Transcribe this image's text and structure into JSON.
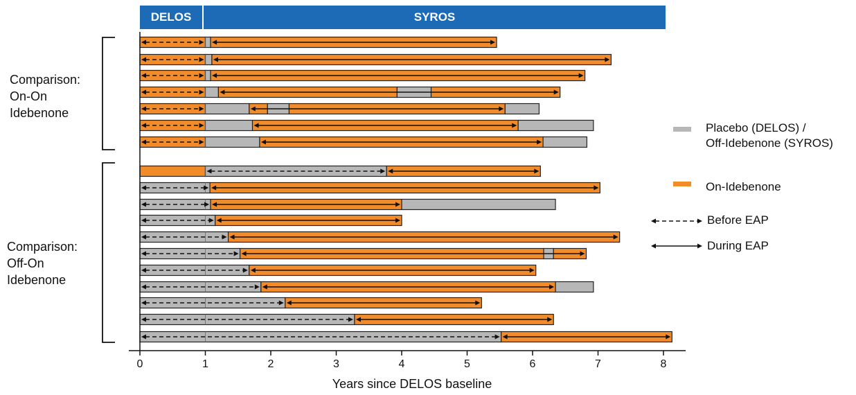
{
  "header": {
    "delos": "DELOS",
    "syros": "SYROS"
  },
  "groups": [
    {
      "lines": [
        "Comparison:",
        "On-On",
        "Idebenone"
      ]
    },
    {
      "lines": [
        "Comparison:",
        "Off-On",
        "Idebenone"
      ]
    }
  ],
  "legend": {
    "placebo": [
      "Placebo (DELOS) /",
      "Off-Idebenone (SYROS)"
    ],
    "on": "On-Idebenone",
    "before": "Before EAP",
    "during": "During EAP"
  },
  "colors": {
    "on": "#f28b2a",
    "off": "#b7b7b7",
    "header": "#1d6ab7",
    "stroke": "#222222"
  },
  "chart_data": {
    "type": "bar",
    "orientation": "horizontal-timeline",
    "xlabel": "Years since DELOS baseline",
    "xlim": [
      0,
      8.4
    ],
    "xticks": [
      0,
      1,
      2,
      3,
      4,
      5,
      6,
      7,
      8
    ],
    "rows": [
      {
        "segments": [
          [
            0,
            1,
            "on"
          ],
          [
            1,
            1.08,
            "off"
          ],
          [
            1.08,
            5.45,
            "on"
          ]
        ],
        "before": [
          0,
          1.0
        ],
        "during": [
          1.08,
          5.45
        ]
      },
      {
        "segments": [
          [
            0,
            1,
            "on"
          ],
          [
            1,
            1.1,
            "off"
          ],
          [
            1.1,
            7.2,
            "on"
          ]
        ],
        "before": [
          0,
          1.0
        ],
        "during": [
          1.1,
          7.2
        ]
      },
      {
        "segments": [
          [
            0,
            1,
            "on"
          ],
          [
            1,
            1.08,
            "off"
          ],
          [
            1.08,
            6.8,
            "on"
          ]
        ],
        "before": [
          0,
          1.0
        ],
        "during": [
          1.08,
          6.8
        ]
      },
      {
        "segments": [
          [
            0,
            1,
            "on"
          ],
          [
            1,
            1.2,
            "off"
          ],
          [
            1.2,
            3.93,
            "on"
          ],
          [
            3.93,
            4.45,
            "off"
          ],
          [
            4.45,
            6.42,
            "on"
          ]
        ],
        "before": [
          0,
          1.0
        ],
        "during": [
          1.2,
          6.42
        ]
      },
      {
        "segments": [
          [
            0,
            1,
            "on"
          ],
          [
            1,
            1.67,
            "off"
          ],
          [
            1.67,
            1.95,
            "on"
          ],
          [
            1.95,
            2.28,
            "off"
          ],
          [
            2.28,
            5.58,
            "on"
          ],
          [
            5.58,
            6.1,
            "off"
          ]
        ],
        "before": [
          0,
          1.0
        ],
        "during": [
          1.67,
          5.58
        ]
      },
      {
        "segments": [
          [
            0,
            1,
            "on"
          ],
          [
            1,
            1.72,
            "off"
          ],
          [
            1.72,
            5.78,
            "on"
          ],
          [
            5.78,
            6.93,
            "off"
          ]
        ],
        "before": [
          0,
          1.0
        ],
        "during": [
          1.72,
          5.78
        ]
      },
      {
        "segments": [
          [
            0,
            1,
            "on"
          ],
          [
            1,
            1.83,
            "off"
          ],
          [
            1.83,
            6.16,
            "on"
          ],
          [
            6.16,
            6.83,
            "off"
          ]
        ],
        "before": [
          0,
          1.0
        ],
        "during": [
          1.83,
          6.16
        ]
      },
      {
        "segments": [
          [
            0,
            1,
            "on"
          ],
          [
            1,
            3.77,
            "off"
          ],
          [
            3.77,
            6.12,
            "on"
          ]
        ],
        "before": [
          1,
          3.77
        ],
        "during": [
          3.77,
          6.12
        ]
      },
      {
        "segments": [
          [
            0,
            1.07,
            "off"
          ],
          [
            1.07,
            7.03,
            "on"
          ]
        ],
        "before": [
          0,
          1.07
        ],
        "during": [
          1.07,
          7.03
        ]
      },
      {
        "segments": [
          [
            0,
            1.08,
            "off"
          ],
          [
            1.08,
            4.0,
            "on"
          ],
          [
            4.0,
            6.35,
            "off"
          ]
        ],
        "before": [
          0,
          1.08
        ],
        "during": [
          1.08,
          4.0
        ]
      },
      {
        "segments": [
          [
            0,
            1.15,
            "off"
          ],
          [
            1.15,
            4.0,
            "on"
          ]
        ],
        "before": [
          0,
          1.15
        ],
        "during": [
          1.15,
          4.0
        ]
      },
      {
        "segments": [
          [
            0,
            1.35,
            "off"
          ],
          [
            1.35,
            7.33,
            "on"
          ]
        ],
        "before": [
          0,
          1.35
        ],
        "during": [
          1.35,
          7.33
        ]
      },
      {
        "segments": [
          [
            0,
            1.53,
            "off"
          ],
          [
            1.53,
            6.17,
            "on"
          ],
          [
            6.17,
            6.32,
            "off"
          ],
          [
            6.32,
            6.82,
            "on"
          ]
        ],
        "before": [
          0,
          1.53
        ],
        "during": [
          1.53,
          6.82
        ]
      },
      {
        "segments": [
          [
            0,
            1.67,
            "off"
          ],
          [
            1.67,
            6.05,
            "on"
          ]
        ],
        "before": [
          0,
          1.67
        ],
        "during": [
          1.67,
          6.05
        ]
      },
      {
        "segments": [
          [
            0,
            1.85,
            "off"
          ],
          [
            1.85,
            6.35,
            "on"
          ],
          [
            6.35,
            6.93,
            "off"
          ]
        ],
        "before": [
          0,
          1.85
        ],
        "during": [
          1.85,
          6.35
        ]
      },
      {
        "segments": [
          [
            0,
            2.22,
            "off"
          ],
          [
            2.22,
            5.22,
            "on"
          ]
        ],
        "before": [
          0,
          2.22
        ],
        "during": [
          2.22,
          5.22
        ]
      },
      {
        "segments": [
          [
            0,
            3.28,
            "off"
          ],
          [
            3.28,
            6.32,
            "on"
          ]
        ],
        "before": [
          0,
          3.28
        ],
        "during": [
          3.28,
          6.32
        ]
      },
      {
        "segments": [
          [
            0,
            5.52,
            "off"
          ],
          [
            5.52,
            8.13,
            "on"
          ]
        ],
        "before": [
          0,
          5.52
        ],
        "during": [
          5.52,
          8.13
        ]
      }
    ]
  }
}
